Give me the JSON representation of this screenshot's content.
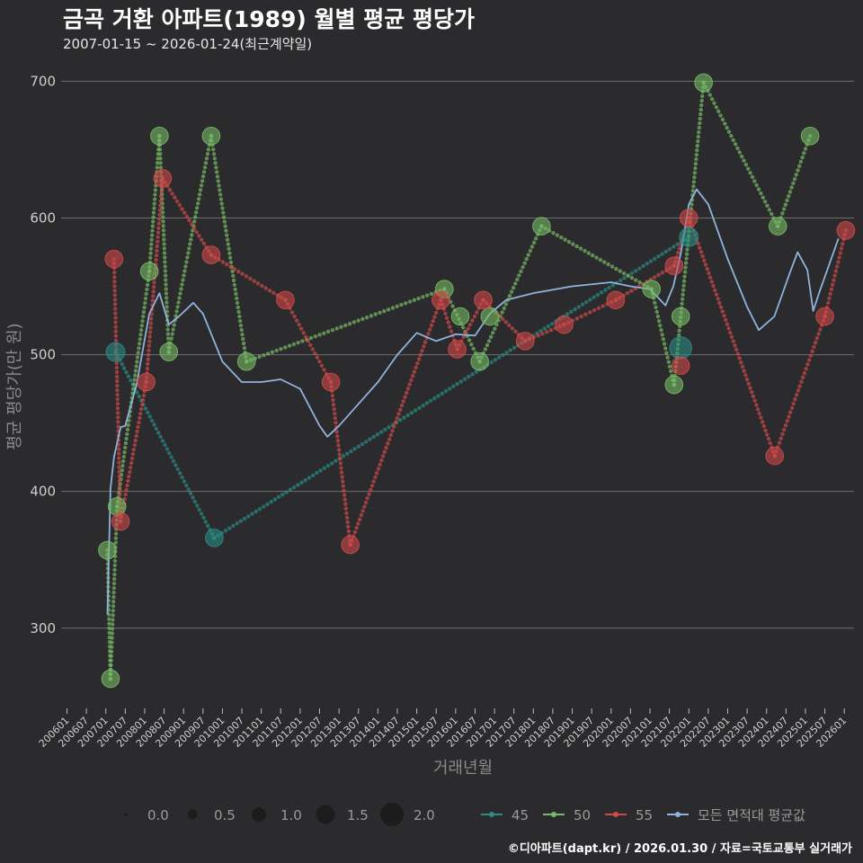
{
  "header": {
    "title": "금곡 거환 아파트(1989) 월별 평균 평당가",
    "subtitle": "2007-01-15 ~ 2026-01-24(최근계약일)"
  },
  "footer": {
    "text": "©디아파트(dapt.kr) / 2026.01.30 / 자료=국토교통부 실거래가"
  },
  "colors": {
    "s45": "#2a8c84",
    "s50": "#77b966",
    "s55": "#cf4a4a",
    "avg": "#8fb3dc",
    "grid": "#6e6e6e",
    "bg": "#2b2a2c"
  },
  "chart_data": {
    "type": "line",
    "title": "금곡 거환 아파트(1989) 월별 평균 평당가",
    "xlabel": "거래년월",
    "ylabel": "평균 평당가(만 원)",
    "ylim": [
      240,
      720
    ],
    "yticks": [
      300,
      400,
      500,
      600,
      700
    ],
    "xlim": [
      2005.85,
      2026.25
    ],
    "xticks": [
      "200601",
      "200607",
      "200701",
      "200707",
      "200801",
      "200807",
      "200901",
      "200907",
      "201001",
      "201007",
      "201101",
      "201107",
      "201201",
      "201207",
      "201301",
      "201307",
      "201401",
      "201407",
      "201501",
      "201507",
      "201601",
      "201607",
      "201701",
      "201707",
      "201801",
      "201807",
      "201901",
      "201907",
      "202001",
      "202007",
      "202101",
      "202107",
      "202201",
      "202207",
      "202301",
      "202307",
      "202401",
      "202407",
      "202501",
      "202507",
      "202601"
    ],
    "series": [
      {
        "name": "45",
        "points": [
          {
            "x": 2007.25,
            "y": 502,
            "size": 0.9
          },
          {
            "x": 2009.79,
            "y": 366,
            "size": 0.8
          },
          {
            "x": 2022.0,
            "y": 586,
            "size": 0.9
          },
          {
            "x": 2021.79,
            "y": 505,
            "size": 1.2
          }
        ]
      },
      {
        "name": "50",
        "points": [
          {
            "x": 2007.04,
            "y": 357,
            "size": 0.8
          },
          {
            "x": 2007.12,
            "y": 263,
            "size": 0.8
          },
          {
            "x": 2007.29,
            "y": 389,
            "size": 0.8
          },
          {
            "x": 2008.12,
            "y": 561,
            "size": 0.8
          },
          {
            "x": 2008.38,
            "y": 660,
            "size": 0.8
          },
          {
            "x": 2008.62,
            "y": 502,
            "size": 0.8
          },
          {
            "x": 2009.71,
            "y": 660,
            "size": 0.8
          },
          {
            "x": 2010.62,
            "y": 495,
            "size": 0.8
          },
          {
            "x": 2015.71,
            "y": 548,
            "size": 0.8
          },
          {
            "x": 2016.12,
            "y": 528,
            "size": 0.8
          },
          {
            "x": 2016.62,
            "y": 495,
            "size": 0.8
          },
          {
            "x": 2016.88,
            "y": 528,
            "size": 0.8
          },
          {
            "x": 2018.21,
            "y": 594,
            "size": 0.8
          },
          {
            "x": 2021.04,
            "y": 548,
            "size": 0.8
          },
          {
            "x": 2021.62,
            "y": 478,
            "size": 0.8
          },
          {
            "x": 2021.79,
            "y": 528,
            "size": 0.8
          },
          {
            "x": 2022.38,
            "y": 699,
            "size": 0.8
          },
          {
            "x": 2024.29,
            "y": 594,
            "size": 0.8
          },
          {
            "x": 2025.12,
            "y": 660,
            "size": 0.8
          }
        ]
      },
      {
        "name": "55",
        "points": [
          {
            "x": 2007.21,
            "y": 570,
            "size": 0.8
          },
          {
            "x": 2007.38,
            "y": 378,
            "size": 0.8
          },
          {
            "x": 2008.04,
            "y": 480,
            "size": 0.8
          },
          {
            "x": 2008.46,
            "y": 629,
            "size": 0.8
          },
          {
            "x": 2009.71,
            "y": 573,
            "size": 0.8
          },
          {
            "x": 2011.62,
            "y": 540,
            "size": 0.8
          },
          {
            "x": 2012.79,
            "y": 480,
            "size": 0.8
          },
          {
            "x": 2013.29,
            "y": 361,
            "size": 0.8
          },
          {
            "x": 2015.62,
            "y": 540,
            "size": 0.8
          },
          {
            "x": 2016.04,
            "y": 504,
            "size": 0.8
          },
          {
            "x": 2016.71,
            "y": 540,
            "size": 0.8
          },
          {
            "x": 2017.79,
            "y": 510,
            "size": 0.8
          },
          {
            "x": 2018.79,
            "y": 522,
            "size": 0.8
          },
          {
            "x": 2020.12,
            "y": 540,
            "size": 0.8
          },
          {
            "x": 2021.62,
            "y": 565,
            "size": 0.8
          },
          {
            "x": 2021.79,
            "y": 492,
            "size": 0.8
          },
          {
            "x": 2022.0,
            "y": 600,
            "size": 0.8
          },
          {
            "x": 2024.21,
            "y": 426,
            "size": 0.8
          },
          {
            "x": 2025.5,
            "y": 528,
            "size": 0.8
          },
          {
            "x": 2026.04,
            "y": 591,
            "size": 0.8
          }
        ]
      },
      {
        "name": "모든 면적대 평균값",
        "points": [
          {
            "x": 2007.04,
            "y": 310
          },
          {
            "x": 2007.12,
            "y": 402
          },
          {
            "x": 2007.21,
            "y": 425
          },
          {
            "x": 2007.38,
            "y": 447
          },
          {
            "x": 2007.5,
            "y": 448
          },
          {
            "x": 2007.79,
            "y": 478
          },
          {
            "x": 2008.12,
            "y": 530
          },
          {
            "x": 2008.38,
            "y": 545
          },
          {
            "x": 2008.62,
            "y": 522
          },
          {
            "x": 2008.88,
            "y": 528
          },
          {
            "x": 2009.25,
            "y": 538
          },
          {
            "x": 2009.5,
            "y": 530
          },
          {
            "x": 2010.0,
            "y": 495
          },
          {
            "x": 2010.5,
            "y": 480
          },
          {
            "x": 2011.0,
            "y": 480
          },
          {
            "x": 2011.5,
            "y": 482
          },
          {
            "x": 2012.0,
            "y": 475
          },
          {
            "x": 2012.5,
            "y": 448
          },
          {
            "x": 2012.7,
            "y": 440
          },
          {
            "x": 2013.0,
            "y": 448
          },
          {
            "x": 2014.0,
            "y": 480
          },
          {
            "x": 2014.5,
            "y": 500
          },
          {
            "x": 2015.0,
            "y": 516
          },
          {
            "x": 2015.5,
            "y": 510
          },
          {
            "x": 2016.0,
            "y": 515
          },
          {
            "x": 2016.5,
            "y": 514
          },
          {
            "x": 2016.88,
            "y": 530
          },
          {
            "x": 2017.3,
            "y": 540
          },
          {
            "x": 2018.0,
            "y": 545
          },
          {
            "x": 2019.0,
            "y": 550
          },
          {
            "x": 2020.0,
            "y": 553
          },
          {
            "x": 2020.5,
            "y": 550
          },
          {
            "x": 2021.0,
            "y": 548
          },
          {
            "x": 2021.4,
            "y": 536
          },
          {
            "x": 2021.6,
            "y": 550
          },
          {
            "x": 2021.8,
            "y": 575
          },
          {
            "x": 2022.0,
            "y": 610
          },
          {
            "x": 2022.2,
            "y": 621
          },
          {
            "x": 2022.5,
            "y": 610
          },
          {
            "x": 2023.0,
            "y": 570
          },
          {
            "x": 2023.5,
            "y": 535
          },
          {
            "x": 2023.8,
            "y": 518
          },
          {
            "x": 2024.2,
            "y": 528
          },
          {
            "x": 2024.6,
            "y": 560
          },
          {
            "x": 2024.8,
            "y": 575
          },
          {
            "x": 2025.05,
            "y": 562
          },
          {
            "x": 2025.2,
            "y": 532
          },
          {
            "x": 2025.35,
            "y": 545
          },
          {
            "x": 2025.6,
            "y": 565
          },
          {
            "x": 2025.85,
            "y": 585
          }
        ]
      }
    ],
    "trend_lines": [
      {
        "series": "45",
        "points": [
          {
            "x": 2007.25,
            "y": 502
          },
          {
            "x": 2009.79,
            "y": 366
          },
          {
            "x": 2022.0,
            "y": 586
          }
        ]
      },
      {
        "series": "50",
        "points": [
          {
            "x": 2007.04,
            "y": 357
          },
          {
            "x": 2007.12,
            "y": 263
          },
          {
            "x": 2007.29,
            "y": 389
          },
          {
            "x": 2008.12,
            "y": 561
          },
          {
            "x": 2008.38,
            "y": 660
          },
          {
            "x": 2008.62,
            "y": 502
          },
          {
            "x": 2009.71,
            "y": 660
          },
          {
            "x": 2010.62,
            "y": 495
          },
          {
            "x": 2015.71,
            "y": 548
          },
          {
            "x": 2016.62,
            "y": 495
          },
          {
            "x": 2018.21,
            "y": 594
          },
          {
            "x": 2021.04,
            "y": 548
          },
          {
            "x": 2021.62,
            "y": 478
          },
          {
            "x": 2022.38,
            "y": 699
          },
          {
            "x": 2024.29,
            "y": 594
          },
          {
            "x": 2025.12,
            "y": 660
          }
        ]
      },
      {
        "series": "55",
        "points": [
          {
            "x": 2007.21,
            "y": 570
          },
          {
            "x": 2007.38,
            "y": 378
          },
          {
            "x": 2008.04,
            "y": 480
          },
          {
            "x": 2008.46,
            "y": 629
          },
          {
            "x": 2009.71,
            "y": 573
          },
          {
            "x": 2011.62,
            "y": 540
          },
          {
            "x": 2012.79,
            "y": 480
          },
          {
            "x": 2013.29,
            "y": 361
          },
          {
            "x": 2015.62,
            "y": 540
          },
          {
            "x": 2016.04,
            "y": 504
          },
          {
            "x": 2016.71,
            "y": 540
          },
          {
            "x": 2017.79,
            "y": 510
          },
          {
            "x": 2018.79,
            "y": 522
          },
          {
            "x": 2020.12,
            "y": 540
          },
          {
            "x": 2021.62,
            "y": 565
          },
          {
            "x": 2022.0,
            "y": 600
          },
          {
            "x": 2024.21,
            "y": 426
          },
          {
            "x": 2025.5,
            "y": 528
          },
          {
            "x": 2026.04,
            "y": 591
          }
        ]
      }
    ],
    "legend": {
      "size_title": "",
      "sizes": [
        {
          "label": "0.0",
          "v": 0.0
        },
        {
          "label": "0.5",
          "v": 0.5
        },
        {
          "label": "1.0",
          "v": 1.0
        },
        {
          "label": "1.5",
          "v": 1.5
        },
        {
          "label": "2.0",
          "v": 2.0
        }
      ],
      "series": [
        {
          "label": "45",
          "key": "s45"
        },
        {
          "label": "50",
          "key": "s50"
        },
        {
          "label": "55",
          "key": "s55"
        },
        {
          "label": "모든 면적대 평균값",
          "key": "avg"
        }
      ]
    }
  }
}
